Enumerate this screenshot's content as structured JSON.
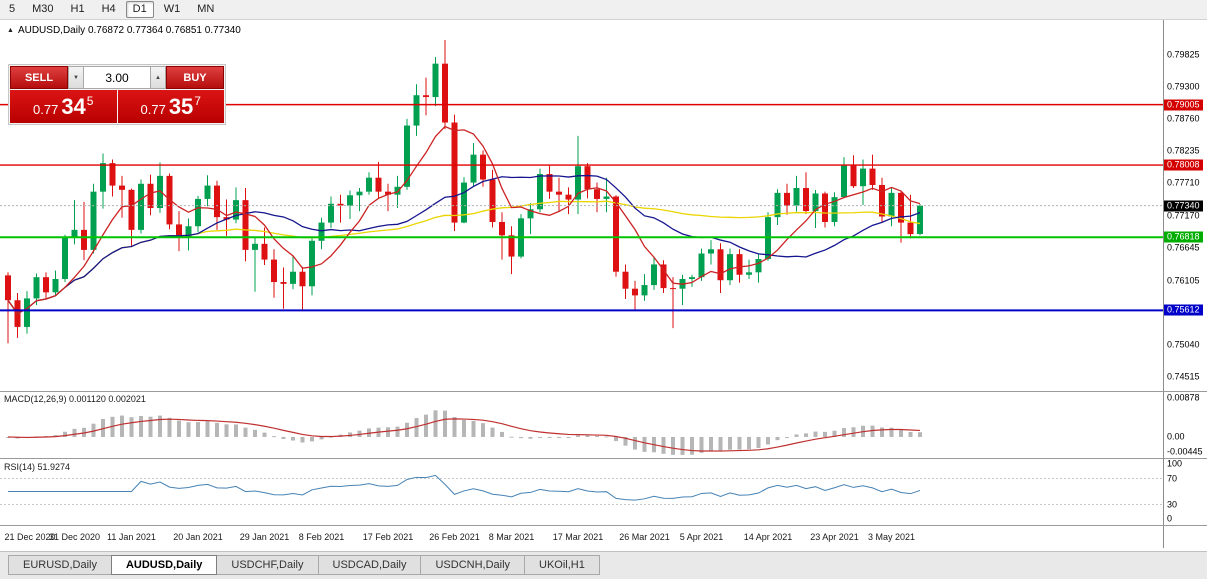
{
  "toolbar": {
    "periods": [
      {
        "label": "5",
        "active": false
      },
      {
        "label": "M30",
        "active": false
      },
      {
        "label": "H1",
        "active": false
      },
      {
        "label": "H4",
        "active": false
      },
      {
        "label": "D1",
        "active": true
      },
      {
        "label": "W1",
        "active": false
      },
      {
        "label": "MN",
        "active": false
      }
    ]
  },
  "chart": {
    "collapse_icon": "▲",
    "header_text": "AUDUSD,Daily 0.76872 0.77364 0.76851 0.77340"
  },
  "trade_panel": {
    "sell_label": "SELL",
    "buy_label": "BUY",
    "volume": "3.00",
    "spin_down_icon": "▼",
    "spin_up_icon": "▲",
    "bid": {
      "prefix": "0.77",
      "big": "34",
      "sup": "5"
    },
    "ask": {
      "prefix": "0.77",
      "big": "35",
      "sup": "7"
    }
  },
  "indicators": {
    "macd_label": "MACD(12,26,9) 0.001120 0.002021",
    "rsi_label": "RSI(14) 51.9274"
  },
  "tabs": [
    {
      "label": "EURUSD,Daily",
      "active": false
    },
    {
      "label": "AUDUSD,Daily",
      "active": true
    },
    {
      "label": "USDCHF,Daily",
      "active": false
    },
    {
      "label": "USDCAD,Daily",
      "active": false
    },
    {
      "label": "USDCNH,Daily",
      "active": false
    },
    {
      "label": "UKOil,H1",
      "active": false
    }
  ],
  "chart_data": {
    "type": "candlestick",
    "symbol": "AUDUSD",
    "timeframe": "Daily",
    "candles": [
      [
        0.7619,
        0.7624,
        0.7507,
        0.7578
      ],
      [
        0.7578,
        0.759,
        0.7516,
        0.7534
      ],
      [
        0.7534,
        0.7593,
        0.7523,
        0.7581
      ],
      [
        0.7581,
        0.7622,
        0.757,
        0.7616
      ],
      [
        0.7616,
        0.7624,
        0.758,
        0.7591
      ],
      [
        0.7591,
        0.7627,
        0.7585,
        0.7613
      ],
      [
        0.7613,
        0.7686,
        0.7608,
        0.7682
      ],
      [
        0.7682,
        0.7743,
        0.767,
        0.7694
      ],
      [
        0.7694,
        0.774,
        0.7644,
        0.7661
      ],
      [
        0.7661,
        0.777,
        0.7655,
        0.7757
      ],
      [
        0.7757,
        0.782,
        0.7729,
        0.7804
      ],
      [
        0.7804,
        0.781,
        0.7749,
        0.7767
      ],
      [
        0.7767,
        0.7783,
        0.7714,
        0.776
      ],
      [
        0.776,
        0.7762,
        0.7666,
        0.7694
      ],
      [
        0.7694,
        0.7777,
        0.7688,
        0.777
      ],
      [
        0.777,
        0.7785,
        0.7718,
        0.773
      ],
      [
        0.773,
        0.7805,
        0.7722,
        0.7783
      ],
      [
        0.7783,
        0.7787,
        0.7695,
        0.7703
      ],
      [
        0.7703,
        0.7725,
        0.7659,
        0.7682
      ],
      [
        0.7682,
        0.7713,
        0.766,
        0.77
      ],
      [
        0.77,
        0.775,
        0.769,
        0.7745
      ],
      [
        0.7745,
        0.7784,
        0.7733,
        0.7767
      ],
      [
        0.7767,
        0.7775,
        0.7694,
        0.7715
      ],
      [
        0.7715,
        0.7744,
        0.7684,
        0.7711
      ],
      [
        0.7711,
        0.7764,
        0.7705,
        0.7743
      ],
      [
        0.7743,
        0.7763,
        0.7642,
        0.7661
      ],
      [
        0.7661,
        0.7683,
        0.7592,
        0.7671
      ],
      [
        0.7671,
        0.7698,
        0.7636,
        0.7645
      ],
      [
        0.7645,
        0.7662,
        0.7582,
        0.7608
      ],
      [
        0.7608,
        0.7632,
        0.7564,
        0.7605
      ],
      [
        0.7605,
        0.765,
        0.7596,
        0.7625
      ],
      [
        0.7625,
        0.7633,
        0.7563,
        0.7601
      ],
      [
        0.7601,
        0.768,
        0.7586,
        0.7676
      ],
      [
        0.7676,
        0.7714,
        0.7662,
        0.7706
      ],
      [
        0.7706,
        0.7749,
        0.7697,
        0.7737
      ],
      [
        0.7737,
        0.7752,
        0.7706,
        0.7734
      ],
      [
        0.7734,
        0.7759,
        0.7712,
        0.7751
      ],
      [
        0.7751,
        0.7763,
        0.7725,
        0.7757
      ],
      [
        0.7757,
        0.7789,
        0.7752,
        0.778
      ],
      [
        0.778,
        0.7806,
        0.7747,
        0.7757
      ],
      [
        0.7757,
        0.777,
        0.7725,
        0.7752
      ],
      [
        0.7752,
        0.7783,
        0.773,
        0.7765
      ],
      [
        0.7765,
        0.7877,
        0.776,
        0.7866
      ],
      [
        0.7866,
        0.7934,
        0.7849,
        0.7916
      ],
      [
        0.7916,
        0.7945,
        0.7883,
        0.7913
      ],
      [
        0.7913,
        0.7979,
        0.7898,
        0.7968
      ],
      [
        0.7968,
        0.8007,
        0.786,
        0.7871
      ],
      [
        0.7871,
        0.7884,
        0.7692,
        0.7706
      ],
      [
        0.7706,
        0.7781,
        0.7705,
        0.7772
      ],
      [
        0.7772,
        0.7837,
        0.7765,
        0.7818
      ],
      [
        0.7818,
        0.7825,
        0.7765,
        0.7777
      ],
      [
        0.7777,
        0.7793,
        0.7698,
        0.7707
      ],
      [
        0.7707,
        0.7723,
        0.7645,
        0.7685
      ],
      [
        0.7685,
        0.77,
        0.7621,
        0.765
      ],
      [
        0.765,
        0.772,
        0.7647,
        0.7713
      ],
      [
        0.7713,
        0.7738,
        0.7687,
        0.7728
      ],
      [
        0.7728,
        0.7795,
        0.7723,
        0.7786
      ],
      [
        0.7786,
        0.78,
        0.7745,
        0.7757
      ],
      [
        0.7757,
        0.778,
        0.7725,
        0.7752
      ],
      [
        0.7752,
        0.7764,
        0.772,
        0.7744
      ],
      [
        0.7744,
        0.7849,
        0.772,
        0.7799
      ],
      [
        0.7799,
        0.7804,
        0.7746,
        0.7761
      ],
      [
        0.7761,
        0.7772,
        0.7723,
        0.7745
      ],
      [
        0.7745,
        0.778,
        0.7723,
        0.7749
      ],
      [
        0.7749,
        0.7751,
        0.7617,
        0.7625
      ],
      [
        0.7625,
        0.7637,
        0.758,
        0.7597
      ],
      [
        0.7597,
        0.761,
        0.7562,
        0.7586
      ],
      [
        0.7586,
        0.7621,
        0.7577,
        0.7603
      ],
      [
        0.7603,
        0.765,
        0.7595,
        0.7637
      ],
      [
        0.7637,
        0.7644,
        0.759,
        0.7598
      ],
      [
        0.7598,
        0.7616,
        0.7532,
        0.7597
      ],
      [
        0.7597,
        0.762,
        0.757,
        0.7613
      ],
      [
        0.7613,
        0.762,
        0.76,
        0.7616
      ],
      [
        0.7616,
        0.7663,
        0.761,
        0.7655
      ],
      [
        0.7655,
        0.7677,
        0.7637,
        0.7662
      ],
      [
        0.7662,
        0.7672,
        0.759,
        0.7611
      ],
      [
        0.7611,
        0.7663,
        0.7603,
        0.7654
      ],
      [
        0.7654,
        0.7662,
        0.7607,
        0.762
      ],
      [
        0.762,
        0.7645,
        0.7613,
        0.7624
      ],
      [
        0.7624,
        0.7655,
        0.7607,
        0.7646
      ],
      [
        0.7646,
        0.7723,
        0.7643,
        0.7715
      ],
      [
        0.7715,
        0.7761,
        0.7702,
        0.7755
      ],
      [
        0.7755,
        0.777,
        0.7719,
        0.7734
      ],
      [
        0.7734,
        0.7783,
        0.7724,
        0.7763
      ],
      [
        0.7763,
        0.7789,
        0.772,
        0.7725
      ],
      [
        0.7725,
        0.776,
        0.7697,
        0.7754
      ],
      [
        0.7754,
        0.7757,
        0.7698,
        0.7707
      ],
      [
        0.7707,
        0.7756,
        0.77,
        0.7748
      ],
      [
        0.7748,
        0.7814,
        0.7747,
        0.78
      ],
      [
        0.78,
        0.7817,
        0.7763,
        0.7766
      ],
      [
        0.7766,
        0.781,
        0.7735,
        0.7795
      ],
      [
        0.7795,
        0.7818,
        0.776,
        0.7768
      ],
      [
        0.7768,
        0.778,
        0.7706,
        0.7716
      ],
      [
        0.7716,
        0.7763,
        0.77,
        0.7755
      ],
      [
        0.7755,
        0.7757,
        0.7673,
        0.7706
      ],
      [
        0.7706,
        0.7752,
        0.768,
        0.7687
      ],
      [
        0.76872,
        0.77364,
        0.76851,
        0.7734
      ]
    ],
    "x_labels": [
      {
        "i": 0,
        "t": "21 Dec 2020"
      },
      {
        "i": 7,
        "t": "31 Dec 2020"
      },
      {
        "i": 13,
        "t": "11 Jan 2021"
      },
      {
        "i": 20,
        "t": "20 Jan 2021"
      },
      {
        "i": 27,
        "t": "29 Jan 2021"
      },
      {
        "i": 33,
        "t": "8 Feb 2021"
      },
      {
        "i": 40,
        "t": "17 Feb 2021"
      },
      {
        "i": 47,
        "t": "26 Feb 2021"
      },
      {
        "i": 53,
        "t": "8 Mar 2021"
      },
      {
        "i": 60,
        "t": "17 Mar 2021"
      },
      {
        "i": 67,
        "t": "26 Mar 2021"
      },
      {
        "i": 73,
        "t": "5 Apr 2021"
      },
      {
        "i": 80,
        "t": "14 Apr 2021"
      },
      {
        "i": 87,
        "t": "23 Apr 2021"
      },
      {
        "i": 93,
        "t": "3 May 2021"
      }
    ],
    "y_ticks": [
      {
        "v": 0.79825,
        "t": "0.79825"
      },
      {
        "v": 0.793,
        "t": "0.79300"
      },
      {
        "v": 0.7876,
        "t": "0.78760"
      },
      {
        "v": 0.78235,
        "t": "0.78235"
      },
      {
        "v": 0.7771,
        "t": "0.77710"
      },
      {
        "v": 0.7717,
        "t": "0.77170"
      },
      {
        "v": 0.76645,
        "t": "0.76645"
      },
      {
        "v": 0.76105,
        "t": "0.76105"
      },
      {
        "v": 0.7504,
        "t": "0.75040"
      },
      {
        "v": 0.74515,
        "t": "0.74515"
      }
    ],
    "levels": [
      {
        "v": 0.79005,
        "t": "0.79005",
        "line": "#e00000",
        "badge": "#d40000",
        "lw": 1.4
      },
      {
        "v": 0.78008,
        "t": "0.78008",
        "line": "#e00000",
        "badge": "#d40000",
        "lw": 1.4
      },
      {
        "v": 0.76818,
        "t": "0.76818",
        "line": "#00c400",
        "badge": "#00ad00",
        "lw": 2
      },
      {
        "v": 0.75612,
        "t": "0.75612",
        "line": "#0000c8",
        "badge": "#0000c8",
        "lw": 2
      }
    ],
    "current_price": {
      "v": 0.7734,
      "t": "0.77340",
      "badge": "#000000"
    },
    "macd_ticks": [
      {
        "v": 0.00878,
        "t": "0.00878"
      },
      {
        "v": 0,
        "t": "0.00"
      },
      {
        "v": -0.00445,
        "t": "-0.00445"
      }
    ],
    "rsi_ticks": [
      {
        "v": 100,
        "t": "100"
      },
      {
        "v": 70,
        "t": "70"
      },
      {
        "v": 30,
        "t": "30"
      },
      {
        "v": 0,
        "t": "0"
      }
    ],
    "rsi_levels": [
      70,
      30
    ],
    "moving_averages": [
      {
        "period": 50,
        "color": "#ead500"
      },
      {
        "period": 21,
        "color": "#15158f"
      },
      {
        "period": 7,
        "color": "#cc2222"
      }
    ],
    "macd_settings": {
      "fast": 12,
      "slow": 26,
      "signal": 9
    },
    "rsi_settings": {
      "period": 14
    },
    "colors": {
      "up": "#00a050",
      "down": "#dd1111",
      "macd_bar": "#b6b6b6",
      "macd_signal": "#c03030",
      "rsi_line": "#4682b4",
      "bid_line": "#b0b0b0"
    }
  }
}
